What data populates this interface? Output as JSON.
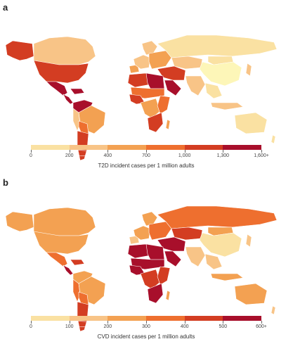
{
  "colors": {
    "c0": "#fdf6b8",
    "c1": "#fae1a2",
    "c2": "#f8c487",
    "c3": "#f3a152",
    "c4": "#ee6f2f",
    "c5": "#d33d22",
    "c6": "#a80f2b",
    "nodata": "#ffffff",
    "outline": "#cfcfcf"
  },
  "panels": [
    {
      "label": "a",
      "legend_title": "T2D incident cases per 1 million adults",
      "legend_ticks": [
        "0",
        "200",
        "400",
        "700",
        "1,000",
        "1,300",
        "1,600+"
      ],
      "region_colors": {
        "alaska": "c5",
        "canada": "c2",
        "greenland": "nodata",
        "usa": "c5",
        "mexico": "c6",
        "central-america": "c6",
        "caribbean": "c6",
        "colombia-venezuela": "c6",
        "peru": "c2",
        "brazil": "c3",
        "bolivia-paraguay": "c4",
        "argentina-chile": "c5",
        "iberia": "c3",
        "western-europe": "c2",
        "scandinavia": "c2",
        "eastern-europe": "c3",
        "russia": "c1",
        "central-asia": "c2",
        "middle-east": "c5",
        "arabia": "c6",
        "north-africa": "c5",
        "libya-egypt": "c6",
        "sahel": "c4",
        "west-africa": "c5",
        "central-africa": "c3",
        "east-africa": "c4",
        "southern-africa": "c5",
        "madagascar": "c3",
        "south-asia": "c2",
        "china": "c0",
        "mongolia": "c1",
        "se-asia": "c1",
        "indonesia": "c2",
        "japan": "c2",
        "australia": "c1",
        "new-zealand": "c1"
      }
    },
    {
      "label": "b",
      "legend_title": "CVD incident cases per 1 million adults",
      "legend_ticks": [
        "0",
        "100",
        "200",
        "300",
        "400",
        "500",
        "600+"
      ],
      "region_colors": {
        "alaska": "c3",
        "canada": "c3",
        "greenland": "nodata",
        "usa": "c3",
        "mexico": "c4",
        "central-america": "c6",
        "caribbean": "c5",
        "colombia-venezuela": "c3",
        "peru": "c4",
        "brazil": "c3",
        "bolivia-paraguay": "c4",
        "argentina-chile": "c5",
        "iberia": "c2",
        "western-europe": "c3",
        "scandinavia": "c3",
        "eastern-europe": "c4",
        "russia": "c4",
        "central-asia": "c5",
        "middle-east": "c6",
        "arabia": "c6",
        "north-africa": "c6",
        "libya-egypt": "c6",
        "sahel": "c6",
        "west-africa": "c6",
        "central-africa": "c5",
        "east-africa": "c5",
        "southern-africa": "c6",
        "madagascar": "c3",
        "south-asia": "c2",
        "china": "c1",
        "mongolia": "c3",
        "se-asia": "c2",
        "indonesia": "c3",
        "japan": "c2",
        "australia": "c3",
        "new-zealand": "c2"
      }
    }
  ]
}
